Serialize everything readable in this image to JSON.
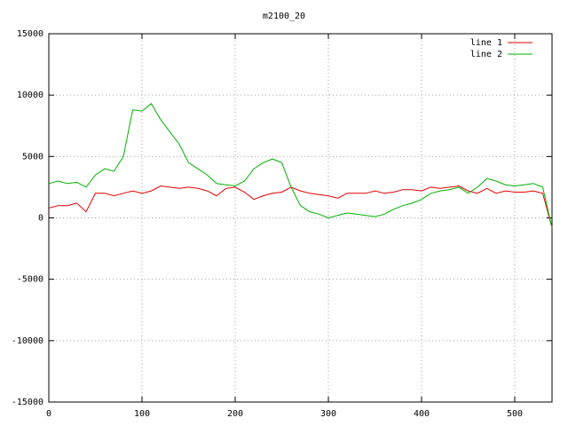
{
  "chart_data": {
    "type": "line",
    "title": "m2100_20",
    "x": [
      0,
      10,
      20,
      30,
      40,
      50,
      60,
      70,
      80,
      90,
      100,
      110,
      120,
      130,
      140,
      150,
      160,
      170,
      180,
      190,
      200,
      210,
      220,
      230,
      240,
      250,
      260,
      270,
      280,
      290,
      300,
      310,
      320,
      330,
      340,
      350,
      360,
      370,
      380,
      390,
      400,
      410,
      420,
      430,
      440,
      450,
      460,
      470,
      480,
      490,
      500,
      510,
      520,
      530,
      540
    ],
    "series": [
      {
        "name": "line 1",
        "color": "#e00000",
        "values": [
          800,
          1000,
          1000,
          1200,
          500,
          2000,
          2000,
          1800,
          2000,
          2200,
          2000,
          2200,
          2600,
          2500,
          2400,
          2500,
          2400,
          2200,
          1800,
          2400,
          2500,
          2100,
          1500,
          1800,
          2000,
          2100,
          2500,
          2200,
          2000,
          1900,
          1800,
          1600,
          2000,
          2000,
          2000,
          2200,
          2000,
          2100,
          2300,
          2300,
          2200,
          2500,
          2400,
          2500,
          2600,
          2200,
          2000,
          2400,
          2000,
          2200,
          2100,
          2100,
          2200,
          2000,
          -800
        ]
      },
      {
        "name": "line 2",
        "color": "#00b000",
        "values": [
          2800,
          3000,
          2800,
          2900,
          2500,
          3500,
          4000,
          3800,
          5000,
          8800,
          8700,
          9300,
          8000,
          7000,
          6000,
          4500,
          4000,
          3500,
          2800,
          2700,
          2600,
          3000,
          4000,
          4500,
          4800,
          4500,
          2500,
          1000,
          500,
          300,
          0,
          200,
          400,
          300,
          200,
          100,
          300,
          700,
          1000,
          1200,
          1500,
          2000,
          2200,
          2300,
          2500,
          2000,
          2500,
          3200,
          3000,
          2700,
          2600,
          2700,
          2800,
          2500,
          -800
        ]
      }
    ],
    "xlim": [
      0,
      540
    ],
    "xticks": [
      0,
      100,
      200,
      300,
      400,
      500
    ],
    "ylim": [
      -15000,
      15000
    ],
    "yticks": [
      -15000,
      -10000,
      -5000,
      0,
      5000,
      10000,
      15000
    ],
    "grid": true,
    "legend": "top-right"
  }
}
